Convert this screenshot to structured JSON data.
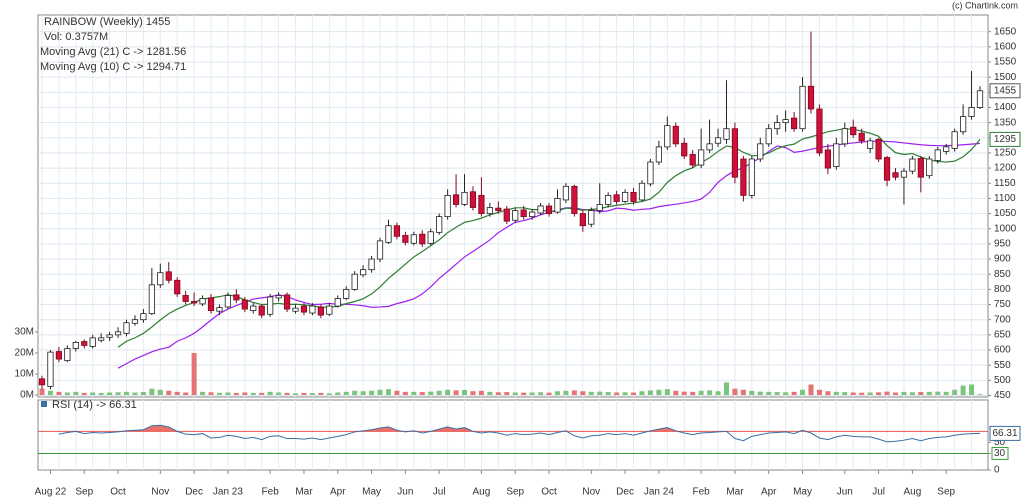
{
  "chart_data": {
    "type": "candlestick",
    "title": "RAINBOW (Weekly) 1455",
    "subtitle": "Vol: 0.3757M",
    "source": "(c) Chartink.com",
    "categories": [
      null,
      "Aug 22",
      null,
      null,
      null,
      "Sep",
      null,
      null,
      null,
      "Oct",
      null,
      null,
      null,
      null,
      "Nov",
      null,
      null,
      null,
      "Dec",
      null,
      null,
      null,
      "Jan 23",
      null,
      null,
      null,
      null,
      "Feb",
      null,
      null,
      null,
      "Mar",
      null,
      null,
      null,
      "Apr",
      null,
      null,
      null,
      "May",
      null,
      null,
      null,
      "Jun",
      null,
      null,
      null,
      "Jul",
      null,
      null,
      null,
      null,
      "Aug",
      null,
      null,
      null,
      "Sep",
      null,
      null,
      null,
      "Oct",
      null,
      null,
      null,
      null,
      "Nov",
      null,
      null,
      null,
      "Dec",
      null,
      null,
      null,
      "Jan 24",
      null,
      null,
      null,
      null,
      "Feb",
      null,
      null,
      null,
      "Mar",
      null,
      null,
      null,
      "Apr",
      null,
      null,
      null,
      "May",
      null,
      null,
      null,
      null,
      "Jun",
      null,
      null,
      null,
      "Jul",
      null,
      null,
      null,
      "Aug",
      null,
      null,
      null,
      "Sep",
      null,
      null,
      null,
      null
    ],
    "candles": [
      [
        505,
        515,
        470,
        485
      ],
      [
        480,
        600,
        470,
        593
      ],
      [
        595,
        610,
        560,
        570
      ],
      [
        565,
        615,
        560,
        605
      ],
      [
        605,
        630,
        595,
        625
      ],
      [
        628,
        635,
        605,
        615
      ],
      [
        612,
        650,
        605,
        640
      ],
      [
        632,
        655,
        625,
        640
      ],
      [
        642,
        660,
        630,
        650
      ],
      [
        650,
        675,
        640,
        660
      ],
      [
        655,
        700,
        645,
        690
      ],
      [
        688,
        715,
        680,
        700
      ],
      [
        700,
        735,
        690,
        720
      ],
      [
        720,
        870,
        715,
        815
      ],
      [
        815,
        885,
        805,
        855
      ],
      [
        858,
        890,
        820,
        830
      ],
      [
        830,
        840,
        775,
        785
      ],
      [
        780,
        795,
        750,
        760
      ],
      [
        760,
        790,
        745,
        755
      ],
      [
        752,
        780,
        745,
        770
      ],
      [
        772,
        785,
        720,
        730
      ],
      [
        728,
        750,
        715,
        740
      ],
      [
        742,
        790,
        735,
        780
      ],
      [
        782,
        800,
        755,
        765
      ],
      [
        765,
        775,
        725,
        735
      ],
      [
        730,
        755,
        720,
        745
      ],
      [
        745,
        750,
        705,
        715
      ],
      [
        718,
        785,
        710,
        775
      ],
      [
        772,
        790,
        760,
        780
      ],
      [
        782,
        790,
        725,
        735
      ],
      [
        728,
        750,
        720,
        738
      ],
      [
        745,
        755,
        715,
        725
      ],
      [
        722,
        755,
        715,
        745
      ],
      [
        742,
        750,
        705,
        715
      ],
      [
        718,
        755,
        712,
        745
      ],
      [
        745,
        780,
        740,
        770
      ],
      [
        770,
        810,
        765,
        800
      ],
      [
        800,
        860,
        795,
        850
      ],
      [
        848,
        880,
        840,
        865
      ],
      [
        865,
        910,
        855,
        900
      ],
      [
        900,
        970,
        890,
        960
      ],
      [
        955,
        1030,
        950,
        1010
      ],
      [
        1010,
        1020,
        965,
        975
      ],
      [
        978,
        990,
        945,
        955
      ],
      [
        952,
        990,
        945,
        980
      ],
      [
        982,
        995,
        940,
        950
      ],
      [
        952,
        1000,
        945,
        990
      ],
      [
        988,
        1050,
        980,
        1040
      ],
      [
        1040,
        1130,
        1030,
        1110
      ],
      [
        1112,
        1180,
        1070,
        1080
      ],
      [
        1080,
        1180,
        1075,
        1120
      ],
      [
        1122,
        1140,
        1060,
        1070
      ],
      [
        1110,
        1170,
        1040,
        1050
      ],
      [
        1050,
        1085,
        1040,
        1070
      ],
      [
        1068,
        1090,
        1050,
        1060
      ],
      [
        1065,
        1075,
        1015,
        1025
      ],
      [
        1028,
        1070,
        1020,
        1060
      ],
      [
        1062,
        1075,
        1030,
        1040
      ],
      [
        1040,
        1065,
        1030,
        1055
      ],
      [
        1052,
        1085,
        1045,
        1075
      ],
      [
        1075,
        1085,
        1040,
        1050
      ],
      [
        1055,
        1130,
        1050,
        1100
      ],
      [
        1095,
        1150,
        1085,
        1140
      ],
      [
        1140,
        1145,
        1040,
        1050
      ],
      [
        1050,
        1060,
        990,
        1010
      ],
      [
        1015,
        1070,
        1005,
        1060
      ],
      [
        1060,
        1150,
        1050,
        1080
      ],
      [
        1080,
        1120,
        1070,
        1110
      ],
      [
        1112,
        1125,
        1080,
        1090
      ],
      [
        1090,
        1130,
        1085,
        1120
      ],
      [
        1120,
        1135,
        1080,
        1090
      ],
      [
        1095,
        1160,
        1090,
        1150
      ],
      [
        1148,
        1230,
        1140,
        1220
      ],
      [
        1220,
        1290,
        1210,
        1270
      ],
      [
        1270,
        1370,
        1260,
        1340
      ],
      [
        1338,
        1350,
        1270,
        1280
      ],
      [
        1282,
        1300,
        1230,
        1240
      ],
      [
        1245,
        1260,
        1200,
        1210
      ],
      [
        1210,
        1330,
        1200,
        1260
      ],
      [
        1260,
        1360,
        1250,
        1280
      ],
      [
        1282,
        1330,
        1270,
        1300
      ],
      [
        1295,
        1490,
        1280,
        1330
      ],
      [
        1330,
        1350,
        1150,
        1170
      ],
      [
        1230,
        1240,
        1090,
        1110
      ],
      [
        1110,
        1240,
        1100,
        1230
      ],
      [
        1230,
        1300,
        1220,
        1280
      ],
      [
        1280,
        1345,
        1270,
        1330
      ],
      [
        1330,
        1375,
        1310,
        1350
      ],
      [
        1350,
        1390,
        1320,
        1360
      ],
      [
        1365,
        1385,
        1320,
        1330
      ],
      [
        1330,
        1500,
        1320,
        1470
      ],
      [
        1470,
        1650,
        1380,
        1395
      ],
      [
        1395,
        1410,
        1240,
        1250
      ],
      [
        1260,
        1280,
        1180,
        1200
      ],
      [
        1205,
        1300,
        1195,
        1280
      ],
      [
        1280,
        1350,
        1270,
        1330
      ],
      [
        1335,
        1360,
        1300,
        1310
      ],
      [
        1315,
        1330,
        1280,
        1290
      ],
      [
        1265,
        1300,
        1250,
        1290
      ],
      [
        1295,
        1300,
        1220,
        1230
      ],
      [
        1235,
        1240,
        1140,
        1160
      ],
      [
        1185,
        1200,
        1160,
        1170
      ],
      [
        1170,
        1200,
        1080,
        1190
      ],
      [
        1190,
        1240,
        1180,
        1230
      ],
      [
        1232,
        1240,
        1120,
        1170
      ],
      [
        1175,
        1240,
        1165,
        1230
      ],
      [
        1225,
        1270,
        1215,
        1260
      ],
      [
        1255,
        1280,
        1245,
        1270
      ],
      [
        1265,
        1330,
        1255,
        1320
      ],
      [
        1320,
        1410,
        1310,
        1370
      ],
      [
        1370,
        1520,
        1360,
        1400
      ],
      [
        1400,
        1470,
        1395,
        1455
      ]
    ],
    "up_color": "#ffffff",
    "down_color": "#d1103a",
    "ylim": [
      445,
      1705
    ],
    "yticks": [
      450,
      500,
      550,
      600,
      650,
      700,
      750,
      800,
      850,
      900,
      950,
      1000,
      1050,
      1100,
      1150,
      1200,
      1250,
      1300,
      1350,
      1400,
      1450,
      1500,
      1550,
      1600,
      1650
    ],
    "grid": true,
    "series": [
      {
        "name": "Moving Avg (21) C -> 1281.56",
        "color": "#a020f0",
        "values": [
          null,
          null,
          null,
          null,
          null,
          null,
          null,
          null,
          null,
          540,
          555,
          570,
          582,
          594,
          603,
          609,
          629,
          640,
          655,
          676,
          699,
          720,
          735,
          747,
          757,
          768,
          772,
          776,
          782,
          777,
          765,
          757,
          750,
          751,
          754,
          750,
          751,
          749,
          746,
          741,
          742,
          744,
          753,
          760,
          769,
          785,
          808,
          836,
          859,
          883,
          907,
          925,
          944,
          963,
          987,
          1005,
          1021,
          1027,
          1035,
          1046,
          1054,
          1062,
          1069,
          1069,
          1063,
          1063,
          1056,
          1059,
          1068,
          1066,
          1061,
          1064,
          1066,
          1073,
          1077,
          1081,
          1085,
          1090,
          1098,
          1120,
          1153,
          1175,
          1191,
          1201,
          1218,
          1234,
          1255,
          1273,
          1268,
          1252,
          1256,
          1262,
          1268,
          1272,
          1276,
          1280,
          1283,
          1286,
          1288,
          1289,
          1288,
          1286,
          1283,
          1280,
          1277,
          1275,
          1274,
          1274,
          1275,
          1277,
          1279,
          1281.56
        ]
      },
      {
        "name": "Moving Avg (10) C -> 1294.71",
        "color": "#2e7d32",
        "last_value_label": "1295",
        "values": [
          null,
          null,
          null,
          null,
          null,
          null,
          null,
          null,
          null,
          609,
          629,
          640,
          655,
          676,
          699,
          720,
          735,
          747,
          757,
          768,
          772,
          776,
          782,
          777,
          765,
          757,
          750,
          751,
          754,
          750,
          751,
          749,
          746,
          741,
          742,
          744,
          753,
          760,
          769,
          785,
          808,
          836,
          859,
          883,
          907,
          925,
          944,
          963,
          987,
          1005,
          1021,
          1027,
          1035,
          1046,
          1054,
          1062,
          1069,
          1069,
          1063,
          1063,
          1056,
          1059,
          1068,
          1066,
          1061,
          1064,
          1066,
          1073,
          1077,
          1081,
          1085,
          1090,
          1098,
          1120,
          1153,
          1175,
          1191,
          1201,
          1218,
          1234,
          1255,
          1273,
          1268,
          1252,
          1241,
          1241,
          1250,
          1264,
          1274,
          1279,
          1296,
          1303,
          1311,
          1320,
          1325,
          1330,
          1328,
          1322,
          1315,
          1305,
          1274,
          1251,
          1245,
          1248,
          1237,
          1227,
          1222,
          1220,
          1223,
          1237,
          1261,
          1294.71
        ]
      }
    ],
    "volume": {
      "up_color": "#7cc47c",
      "down_color": "#e57373",
      "ylim": [
        0,
        30
      ],
      "yticks": [
        {
          "value": 0,
          "label": "0M"
        },
        {
          "value": 10,
          "label": "10M"
        },
        {
          "value": 20,
          "label": "20M"
        },
        {
          "value": 30,
          "label": "30M"
        }
      ],
      "values": [
        3,
        2,
        1.5,
        1.2,
        1.5,
        1,
        1.2,
        1,
        1.2,
        1.3,
        1.5,
        1.2,
        1.4,
        3,
        2.5,
        2,
        1.5,
        1.2,
        20,
        1.5,
        1.3,
        1,
        1.2,
        1,
        1.2,
        1,
        1,
        1.5,
        1.2,
        1,
        0.8,
        1,
        0.9,
        1,
        0.8,
        1.2,
        1.5,
        2,
        1.8,
        2,
        2.5,
        2.8,
        2,
        1.5,
        1.5,
        1.4,
        1.6,
        2,
        2.5,
        2.2,
        2.4,
        1.8,
        2,
        1.5,
        1.3,
        1.4,
        1.2,
        1.1,
        1.2,
        1.3,
        1.1,
        1.8,
        2,
        2.2,
        1.8,
        1.5,
        1.6,
        1.4,
        1.2,
        1.3,
        1.2,
        1.8,
        2.2,
        2.5,
        2.8,
        2,
        1.6,
        1.5,
        2,
        2.2,
        1.8,
        6,
        3,
        2.5,
        2,
        1.6,
        1.5,
        1.4,
        1.3,
        1.5,
        2.5,
        5,
        2.5,
        1.8,
        1.5,
        1.4,
        1.2,
        1.1,
        1.2,
        1.3,
        1.6,
        1.2,
        1.5,
        1.3,
        1.4,
        1.5,
        1.6,
        1.5,
        2.5,
        4.5,
        5,
        0.3757
      ]
    },
    "rsi": {
      "name": "RSI (14) -> 66.31",
      "color": "#3a6ea5",
      "overbought": 70,
      "oversold": 30,
      "overbought_color": "#e8584f",
      "oversold_color": "#3c9a3c",
      "ylim": [
        0,
        125
      ],
      "yticks": [
        0,
        30,
        50
      ],
      "values": [
        null,
        null,
        65,
        68,
        70,
        66,
        68,
        67,
        68,
        69,
        71,
        72,
        73,
        80,
        81,
        78,
        70,
        65,
        64,
        66,
        58,
        59,
        63,
        61,
        57,
        59,
        55,
        61,
        62,
        57,
        57,
        56,
        58,
        55,
        58,
        61,
        64,
        69,
        71,
        73,
        76,
        78,
        72,
        69,
        71,
        67,
        70,
        74,
        78,
        74,
        77,
        70,
        67,
        69,
        67,
        63,
        66,
        64,
        65,
        67,
        64,
        68,
        71,
        62,
        58,
        62,
        63,
        66,
        64,
        66,
        63,
        67,
        71,
        74,
        77,
        71,
        67,
        64,
        67,
        68,
        69,
        70,
        57,
        53,
        61,
        64,
        67,
        68,
        69,
        66,
        72,
        67,
        58,
        55,
        60,
        63,
        61,
        60,
        60,
        56,
        51,
        52,
        54,
        57,
        53,
        57,
        59,
        60,
        63,
        65,
        66,
        66.31
      ]
    }
  }
}
